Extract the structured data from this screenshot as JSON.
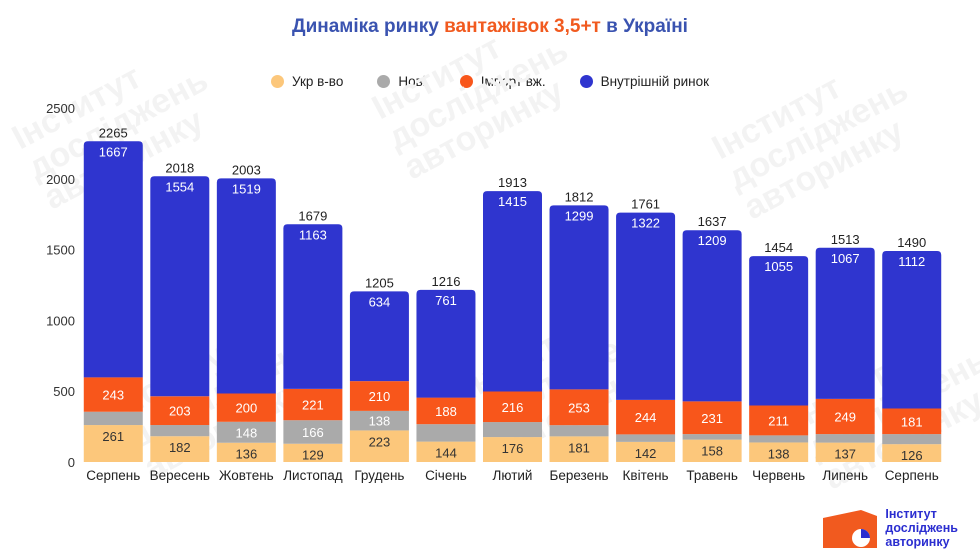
{
  "title": {
    "part1": "Динаміка ринку ",
    "part2": "вантажівок 3,5+т",
    "part3": " в Україні"
  },
  "colors": {
    "title": "#3a53b0",
    "accent": "#f15a1f",
    "ukr": "#fcc77b",
    "new": "#aaaaaa",
    "import": "#f8561b",
    "internal": "#2f35cf"
  },
  "legend": [
    {
      "label": "Укр в-во",
      "color": "#fcc77b"
    },
    {
      "label": "Нові",
      "color": "#aaaaaa"
    },
    {
      "label": "Імпорт вж.",
      "color": "#f8561b"
    },
    {
      "label": "Внутрішній ринок",
      "color": "#2f35cf"
    }
  ],
  "chart_data": {
    "type": "bar",
    "stacked": true,
    "title": "Динаміка ринку вантажівок 3,5+т в Україні",
    "categories": [
      "Серпень",
      "Вересень",
      "Жовтень",
      "Листопад",
      "Грудень",
      "Січень",
      "Лютий",
      "Березень",
      "Квітень",
      "Травень",
      "Червень",
      "Липень",
      "Серпень"
    ],
    "totals": [
      2265,
      2018,
      2003,
      1679,
      1205,
      1216,
      1913,
      1812,
      1761,
      1637,
      1454,
      1513,
      1490
    ],
    "series": [
      {
        "name": "Укр в-во",
        "values": [
          261,
          182,
          136,
          129,
          223,
          144,
          176,
          181,
          142,
          158,
          138,
          137,
          126
        ],
        "color": "#fcc77b"
      },
      {
        "name": "Нові",
        "values": [
          94,
          79,
          148,
          166,
          138,
          123,
          106,
          79,
          53,
          39,
          50,
          60,
          71
        ],
        "color": "#aaaaaa",
        "labels": [
          "",
          "",
          "148",
          "166",
          "138",
          "",
          "",
          "",
          "",
          "",
          "",
          "",
          ""
        ]
      },
      {
        "name": "Імпорт вж.",
        "values": [
          243,
          203,
          200,
          221,
          210,
          188,
          216,
          253,
          244,
          231,
          211,
          249,
          181
        ],
        "color": "#f8561b"
      },
      {
        "name": "Внутрішній ринок",
        "values": [
          1667,
          1554,
          1519,
          1163,
          634,
          761,
          1415,
          1299,
          1322,
          1209,
          1055,
          1067,
          1112
        ],
        "color": "#2f35cf"
      }
    ],
    "ylim": [
      0,
      2500
    ],
    "yticks": [
      0,
      500,
      1000,
      1500,
      2000,
      2500
    ],
    "grid": false,
    "legend_position": "top-center"
  },
  "watermark": {
    "lines": [
      "Інститут",
      "досліджень",
      "авторинку"
    ]
  },
  "logo": {
    "lines": [
      "Інститут",
      "досліджень",
      "авторинку"
    ]
  }
}
